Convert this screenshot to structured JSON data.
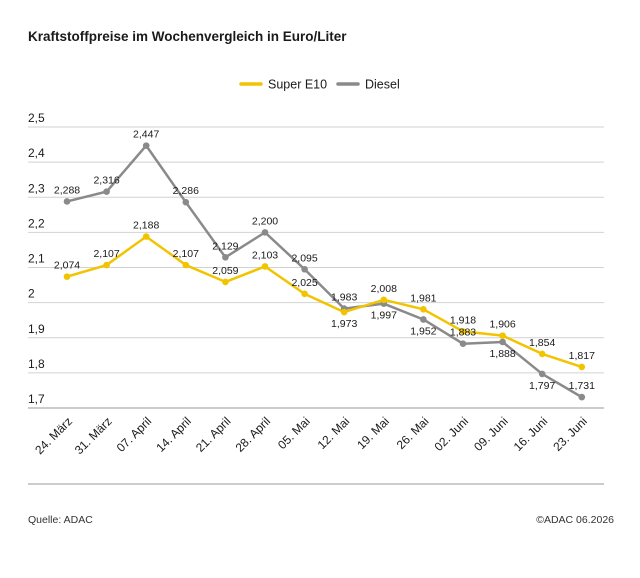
{
  "title": "Kraftstoffpreise im Wochenvergleich in Euro/Liter",
  "footer": {
    "source": "Quelle: ADAC",
    "copyright": "©ADAC 06.2026"
  },
  "colors": {
    "super_e10": "#f2c400",
    "diesel": "#8a8a8a",
    "grid": "#d2d2d2",
    "axis": "#999999"
  },
  "chart_data": {
    "type": "line",
    "categories": [
      "24. März",
      "31. März",
      "07. April",
      "14. April",
      "21. April",
      "28. April",
      "05. Mai",
      "12. Mai",
      "19. Mai",
      "26. Mai",
      "02. Juni",
      "09. Juni",
      "16. Juni",
      "23. Juni"
    ],
    "series": [
      {
        "name": "Super E10",
        "color": "#f2c400",
        "values": [
          2.074,
          2.107,
          2.188,
          2.107,
          2.059,
          2.103,
          2.025,
          1.973,
          2.008,
          1.981,
          1.918,
          1.906,
          1.854,
          1.817
        ],
        "labels": [
          "2,074",
          "2,107",
          "2,188",
          "2,107",
          "2,059",
          "2,103",
          "2,025",
          "1,973",
          "2,008",
          "1,981",
          "1,918",
          "1,906",
          "1,854",
          "1,817"
        ],
        "label_position": [
          "above",
          "above",
          "above",
          "above",
          "above",
          "above",
          "above",
          "below",
          "above",
          "above",
          "above",
          "above",
          "above",
          "above"
        ]
      },
      {
        "name": "Diesel",
        "color": "#8a8a8a",
        "values": [
          2.288,
          2.316,
          2.447,
          2.286,
          2.129,
          2.2,
          2.095,
          1.983,
          1.997,
          1.952,
          1.883,
          1.888,
          1.797,
          1.731
        ],
        "labels": [
          "2,288",
          "2,316",
          "2,447",
          "2,286",
          "2,129",
          "2,200",
          "2,095",
          "1,983",
          "1,997",
          "1,952",
          "1,883",
          "1,888",
          "1,797",
          "1,731"
        ],
        "label_position": [
          "above",
          "above",
          "above",
          "above",
          "above",
          "above",
          "above",
          "above",
          "below",
          "below",
          "above",
          "below",
          "below",
          "above"
        ]
      }
    ],
    "y_ticks": [
      1.7,
      1.8,
      1.9,
      2.0,
      2.1,
      2.2,
      2.3,
      2.4,
      2.5
    ],
    "y_tick_labels": [
      "1,7",
      "1,8",
      "1,9",
      "2",
      "2,1",
      "2,2",
      "2,3",
      "2,4",
      "2,5"
    ],
    "ylim": [
      1.7,
      2.5
    ],
    "grid": true,
    "legend": "top-center"
  }
}
